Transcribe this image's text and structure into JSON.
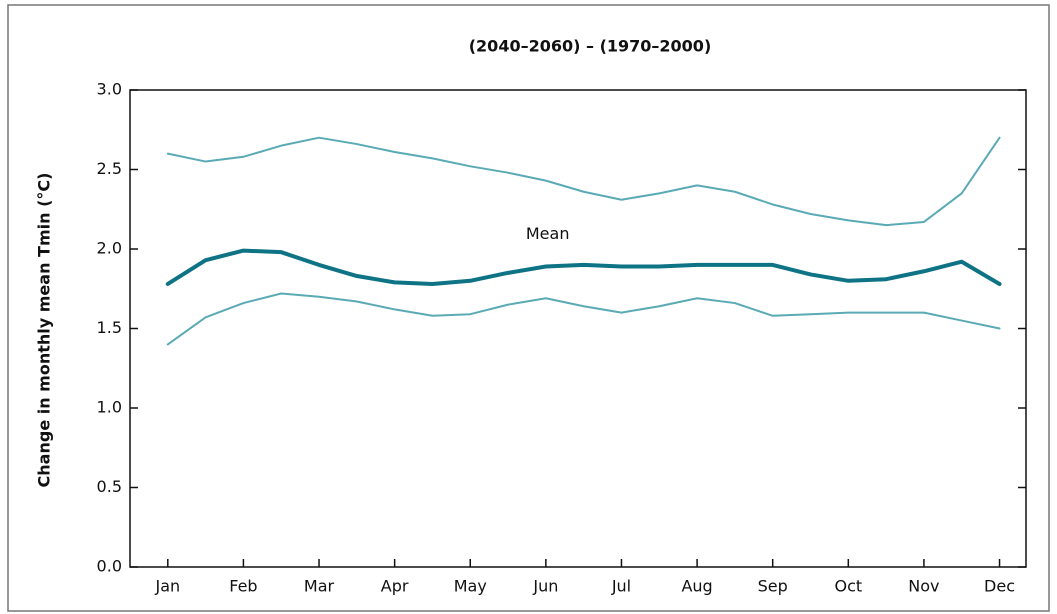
{
  "chart_data": {
    "type": "line",
    "title": "(2040–2060) – (1970–2000)",
    "y_label": "Change in monthly mean Tmin (°C)",
    "x": [
      1,
      1.5,
      2,
      2.5,
      3,
      3.5,
      4,
      4.5,
      5,
      5.5,
      6,
      6.5,
      7,
      7.5,
      8,
      8.5,
      9,
      9.5,
      10,
      10.5,
      11,
      11.5,
      12
    ],
    "xlim": [
      0.5,
      12.35
    ],
    "xticks": [
      {
        "value": 1,
        "label": "Jan"
      },
      {
        "value": 2,
        "label": "Feb"
      },
      {
        "value": 3,
        "label": "Mar"
      },
      {
        "value": 4,
        "label": "Apr"
      },
      {
        "value": 5,
        "label": "May"
      },
      {
        "value": 6,
        "label": "Jun"
      },
      {
        "value": 7,
        "label": "Jul"
      },
      {
        "value": 8,
        "label": "Aug"
      },
      {
        "value": 9,
        "label": "Sep"
      },
      {
        "value": 10,
        "label": "Oct"
      },
      {
        "value": 11,
        "label": "Nov"
      },
      {
        "value": 12,
        "label": "Dec"
      }
    ],
    "ylim": [
      0,
      3
    ],
    "yticks": [
      {
        "value": 0,
        "label": "0.0"
      },
      0.5,
      {
        "value": 1,
        "label": "1.0"
      },
      1.5,
      {
        "value": 2,
        "label": "2.0"
      },
      2.5,
      {
        "value": 3,
        "label": "3.0"
      }
    ],
    "series": [
      {
        "name": "Mean",
        "color": "#0e7384",
        "width": 4,
        "values": [
          1.78,
          1.93,
          1.99,
          1.98,
          1.9,
          1.83,
          1.79,
          1.78,
          1.8,
          1.85,
          1.89,
          1.9,
          1.89,
          1.89,
          1.9,
          1.9,
          1.9,
          1.84,
          1.8,
          1.81,
          1.86,
          1.92,
          1.78
        ]
      },
      {
        "color": "#5aaab5",
        "width": 2,
        "values": [
          2.6,
          2.55,
          2.58,
          2.65,
          2.7,
          2.66,
          2.61,
          2.57,
          2.52,
          2.48,
          2.43,
          2.36,
          2.31,
          2.35,
          2.4,
          2.36,
          2.28,
          2.22,
          2.18,
          2.15,
          2.17,
          2.35,
          2.7
        ]
      },
      {
        "color": "#5aaab5",
        "width": 2,
        "values": [
          1.4,
          1.57,
          1.66,
          1.72,
          1.7,
          1.67,
          1.62,
          1.58,
          1.59,
          1.65,
          1.69,
          1.64,
          1.6,
          1.64,
          1.69,
          1.66,
          1.58,
          1.59,
          1.6,
          1.6,
          1.6,
          1.55,
          1.5
        ]
      }
    ]
  }
}
